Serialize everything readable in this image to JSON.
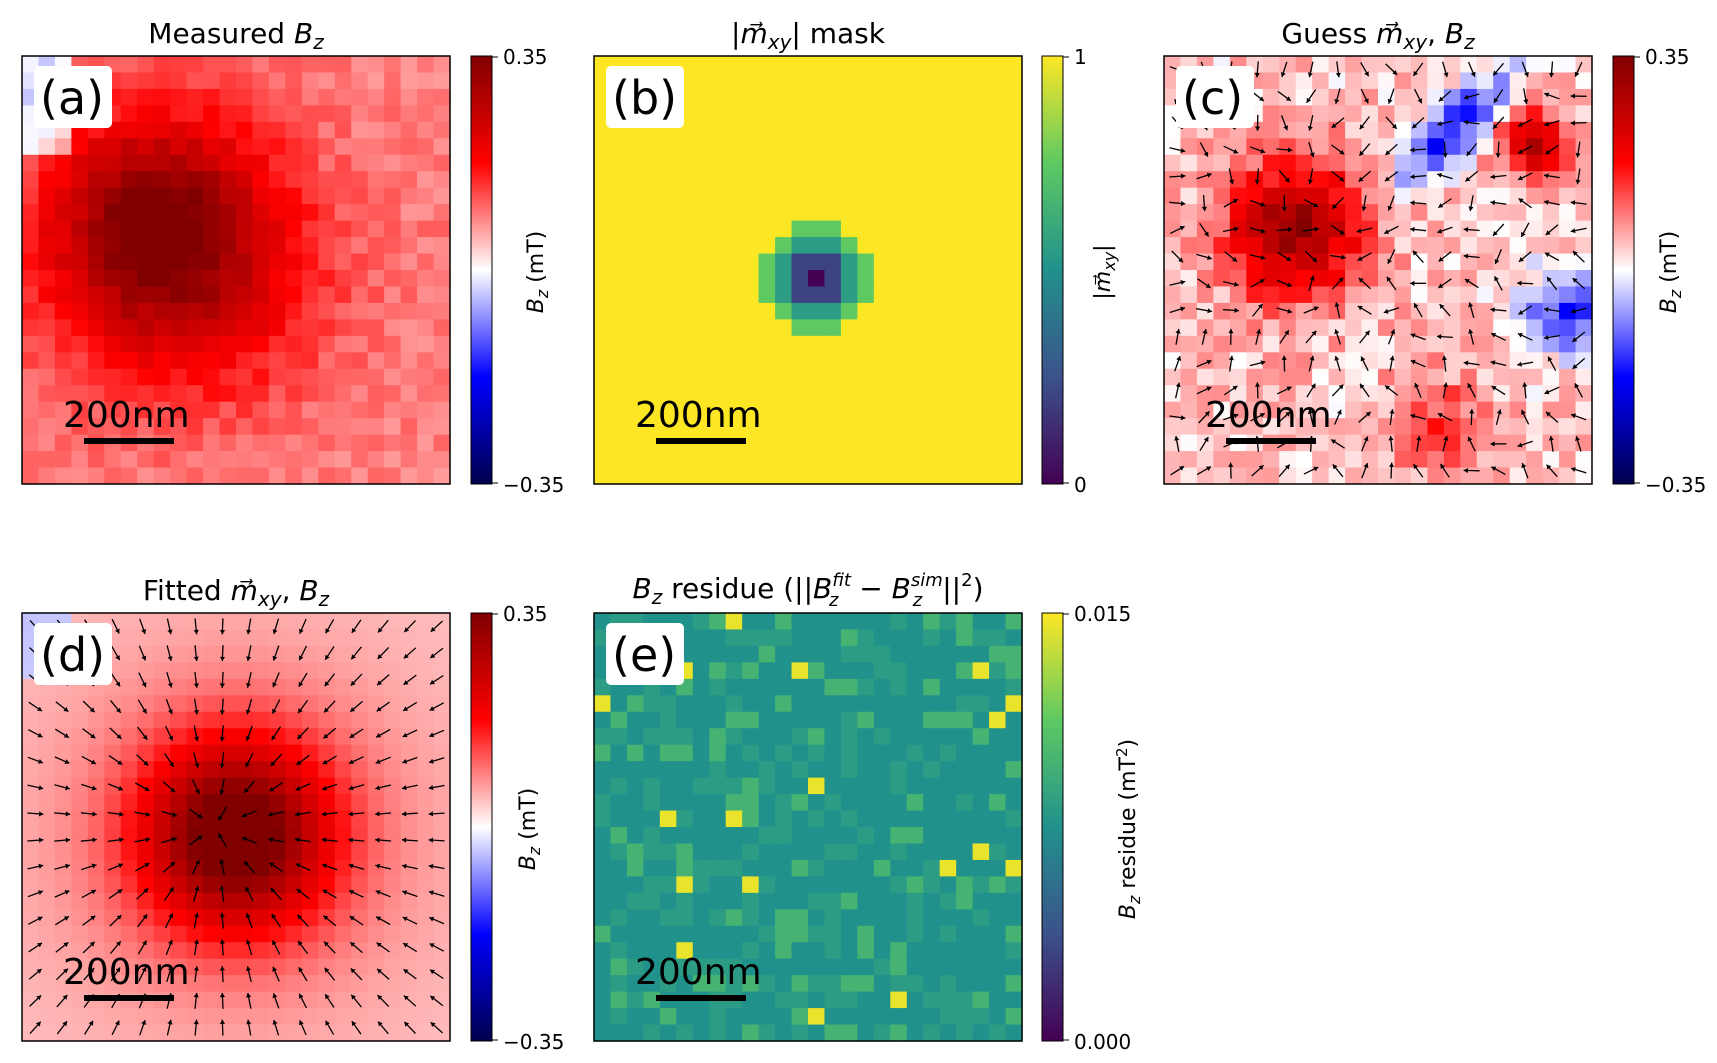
{
  "figure": {
    "colors": {
      "red": "#ff0000",
      "darkred": "#800000",
      "blue": "#0000ff",
      "navy": "#000080",
      "white": "#ffffff",
      "yellow": "#fde725",
      "teal": "#21918c",
      "purple": "#440154"
    },
    "scalebar_label": "200nm",
    "panels": [
      {
        "id": "a",
        "letter": "(a)",
        "title": "Measured B_z",
        "cmap": "seismic",
        "colorbar": {
          "label": "B_z (mT)",
          "ticks": [
            "0.35",
            "−0.35"
          ]
        },
        "arrows": false
      },
      {
        "id": "b",
        "letter": "(b)",
        "title": "|m_xy| mask",
        "cmap": "viridis",
        "colorbar": {
          "label": "|m_xy|",
          "ticks": [
            "1",
            "0"
          ]
        },
        "arrows": false
      },
      {
        "id": "c",
        "letter": "(c)",
        "title": "Guess m_xy, B_z",
        "cmap": "seismic",
        "colorbar": {
          "label": "B_z (mT)",
          "ticks": [
            "0.35",
            "−0.35"
          ]
        },
        "arrows": true
      },
      {
        "id": "d",
        "letter": "(d)",
        "title": "Fitted m_xy, B_z",
        "cmap": "seismic",
        "colorbar": {
          "label": "B_z (mT)",
          "ticks": [
            "0.35",
            "−0.35"
          ]
        },
        "arrows": true
      },
      {
        "id": "e",
        "letter": "(e)",
        "title": "B_z residue (||B_z^fit − B_z^sim||²)",
        "cmap": "viridis",
        "colorbar": {
          "label": "B_z residue (mT²)",
          "ticks": [
            "0.015",
            "0.000"
          ]
        },
        "arrows": false
      }
    ]
  },
  "chart_data": [
    {
      "type": "heatmap",
      "panel": "a",
      "title": "Measured B_z",
      "grid": [
        26,
        26
      ],
      "value_range": [
        -0.35,
        0.35
      ],
      "colorbar_label": "B_z (mT)",
      "description_values": {
        "peak": 0.3,
        "background": 0.08
      }
    },
    {
      "type": "heatmap",
      "panel": "b",
      "title": "|m_xy| mask",
      "grid": [
        26,
        26
      ],
      "value_range": [
        0,
        1
      ],
      "colorbar_label": "|m_xy|",
      "description_values": {
        "center_min": 0,
        "background": 1
      }
    },
    {
      "type": "heatmap",
      "panel": "c",
      "title": "Guess m_xy, B_z",
      "grid": [
        26,
        26
      ],
      "value_range": [
        -0.35,
        0.35
      ],
      "colorbar_label": "B_z (mT)"
    },
    {
      "type": "heatmap",
      "panel": "d",
      "title": "Fitted m_xy, B_z",
      "grid": [
        26,
        26
      ],
      "value_range": [
        -0.35,
        0.35
      ],
      "colorbar_label": "B_z (mT)"
    },
    {
      "type": "heatmap",
      "panel": "e",
      "title": "B_z residue (||B_z^fit − B_z^sim||²)",
      "grid": [
        26,
        26
      ],
      "value_range": [
        0.0,
        0.015
      ],
      "colorbar_label": "B_z residue (mT²)"
    }
  ]
}
